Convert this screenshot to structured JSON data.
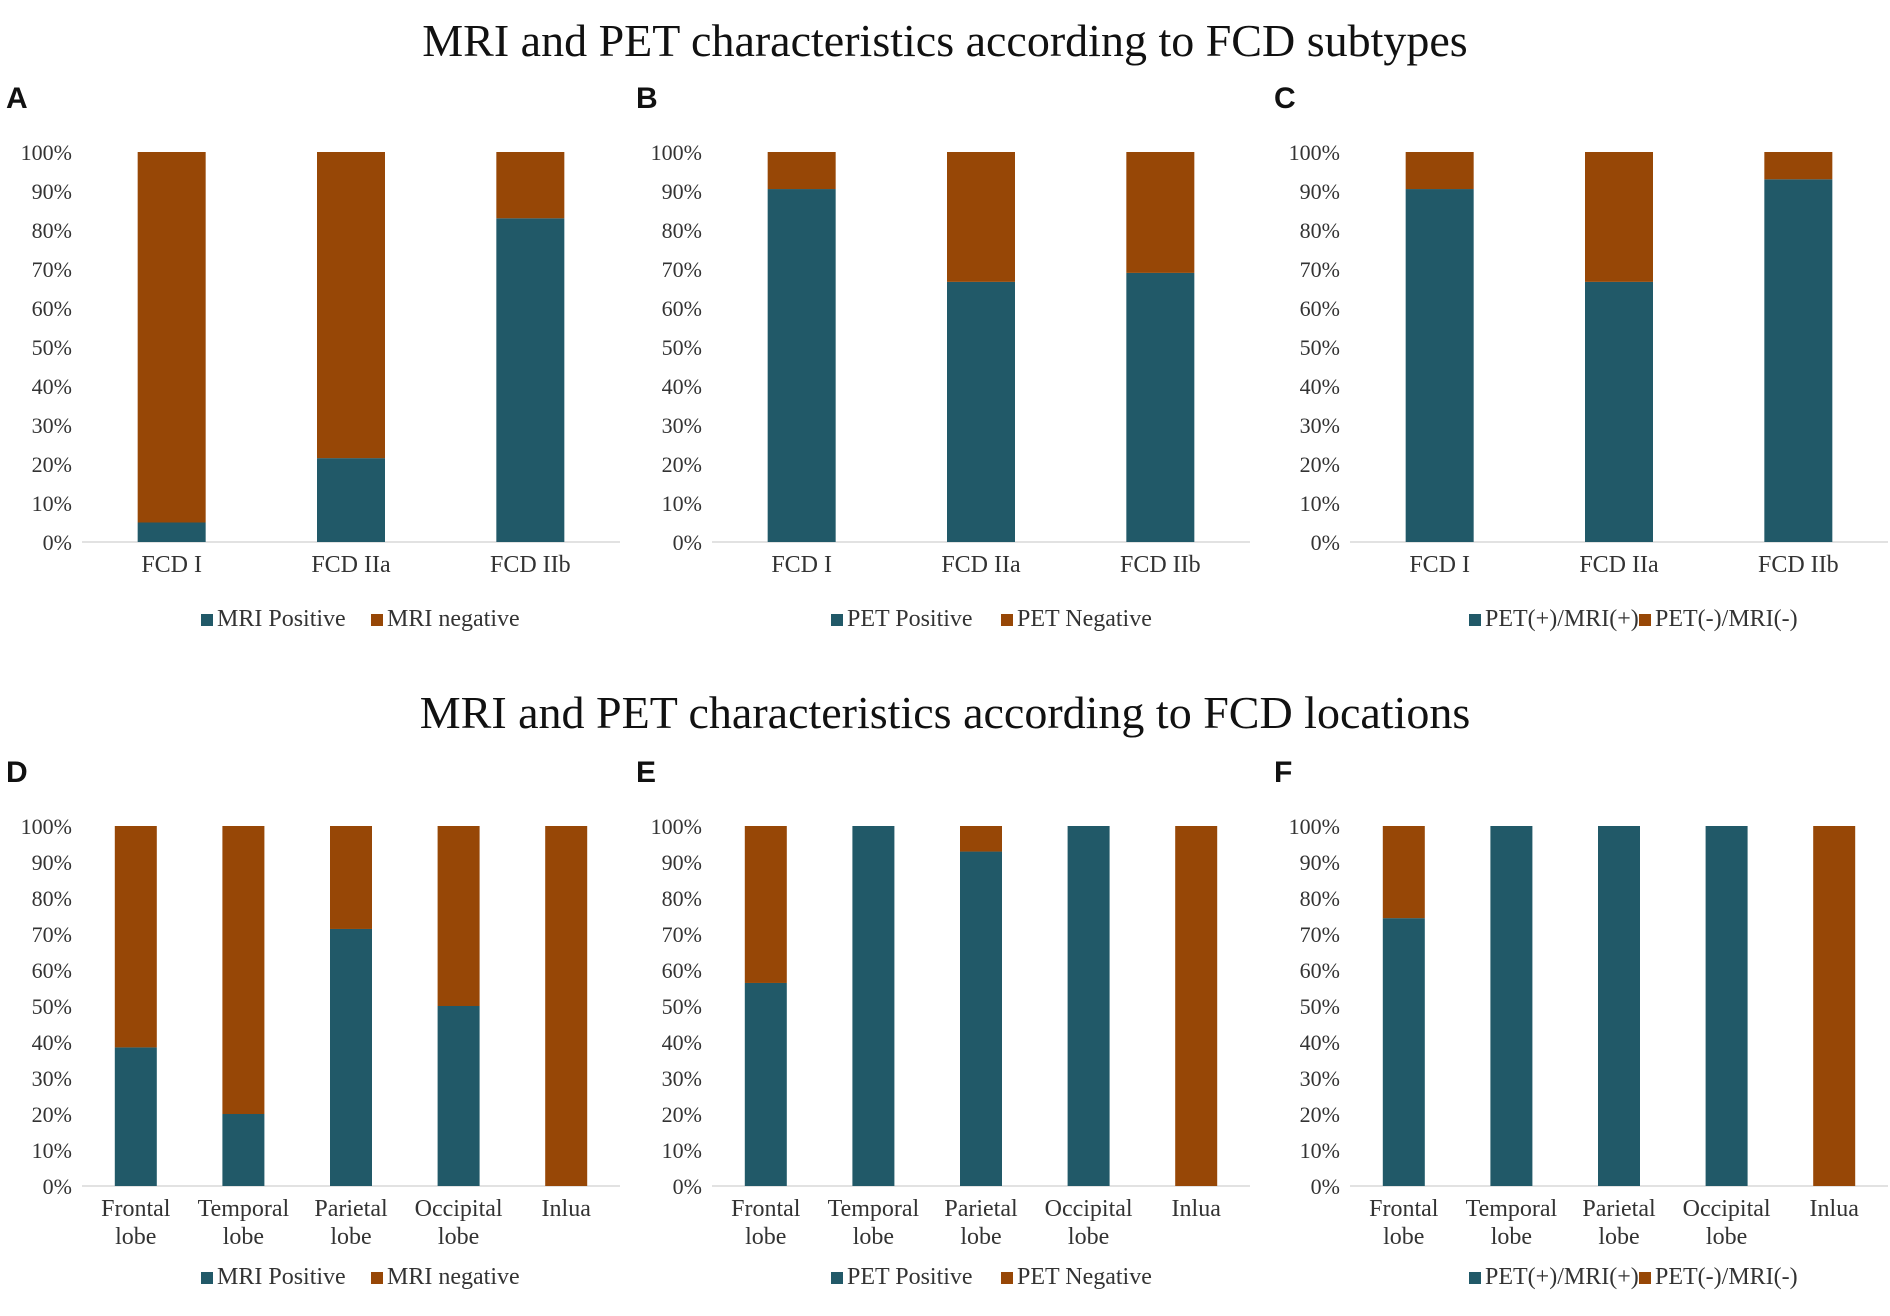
{
  "titles": {
    "top": "MRI and PET characteristics according to FCD subtypes",
    "bottom": "MRI and PET characteristics according to FCD locations"
  },
  "colors": {
    "positive": "#215968",
    "negative": "#974706"
  },
  "chart_data": [
    {
      "panel": "A",
      "type": "bar",
      "stacked": true,
      "categories": [
        [
          "FCD I"
        ],
        [
          "FCD IIa"
        ],
        [
          "FCD IIb"
        ]
      ],
      "series": [
        {
          "name": "MRI Positive",
          "values": [
            5,
            21.5,
            83
          ]
        },
        {
          "name": "MRI negative",
          "values": [
            95,
            78.5,
            17
          ]
        }
      ],
      "ylim": [
        0,
        100
      ],
      "yticks": [
        "0%",
        "10%",
        "20%",
        "30%",
        "40%",
        "50%",
        "60%",
        "70%",
        "80%",
        "90%",
        "100%"
      ]
    },
    {
      "panel": "B",
      "type": "bar",
      "stacked": true,
      "categories": [
        [
          "FCD I"
        ],
        [
          "FCD IIa"
        ],
        [
          "FCD IIb"
        ]
      ],
      "series": [
        {
          "name": "PET Positive",
          "values": [
            90.5,
            66.7,
            69
          ]
        },
        {
          "name": "PET Negative",
          "values": [
            9.5,
            33.3,
            31
          ]
        }
      ],
      "ylim": [
        0,
        100
      ],
      "yticks": [
        "0%",
        "10%",
        "20%",
        "30%",
        "40%",
        "50%",
        "60%",
        "70%",
        "80%",
        "90%",
        "100%"
      ]
    },
    {
      "panel": "C",
      "type": "bar",
      "stacked": true,
      "categories": [
        [
          "FCD I"
        ],
        [
          "FCD IIa"
        ],
        [
          "FCD IIb"
        ]
      ],
      "series": [
        {
          "name": "PET(+)/MRI(+)",
          "values": [
            90.5,
            66.7,
            93
          ]
        },
        {
          "name": "PET(-)/MRI(-)",
          "values": [
            9.5,
            33.3,
            7
          ]
        }
      ],
      "ylim": [
        0,
        100
      ],
      "yticks": [
        "0%",
        "10%",
        "20%",
        "30%",
        "40%",
        "50%",
        "60%",
        "70%",
        "80%",
        "90%",
        "100%"
      ]
    },
    {
      "panel": "D",
      "type": "bar",
      "stacked": true,
      "categories": [
        [
          "Frontal",
          "lobe"
        ],
        [
          "Temporal",
          "lobe"
        ],
        [
          "Parietal",
          "lobe"
        ],
        [
          "Occipital",
          "lobe"
        ],
        [
          "Inlua"
        ]
      ],
      "series": [
        {
          "name": "MRI Positive",
          "values": [
            38.5,
            20,
            71.4,
            50,
            0
          ]
        },
        {
          "name": "MRI negative",
          "values": [
            61.5,
            80,
            28.6,
            50,
            100
          ]
        }
      ],
      "ylim": [
        0,
        100
      ],
      "yticks": [
        "0%",
        "10%",
        "20%",
        "30%",
        "40%",
        "50%",
        "60%",
        "70%",
        "80%",
        "90%",
        "100%"
      ]
    },
    {
      "panel": "E",
      "type": "bar",
      "stacked": true,
      "categories": [
        [
          "Frontal",
          "lobe"
        ],
        [
          "Temporal",
          "lobe"
        ],
        [
          "Parietal",
          "lobe"
        ],
        [
          "Occipital",
          "lobe"
        ],
        [
          "Inlua"
        ]
      ],
      "series": [
        {
          "name": "PET Positive",
          "values": [
            56.4,
            100,
            92.9,
            100,
            0
          ]
        },
        {
          "name": "PET Negative",
          "values": [
            43.6,
            0,
            7.1,
            0,
            100
          ]
        }
      ],
      "ylim": [
        0,
        100
      ],
      "yticks": [
        "0%",
        "10%",
        "20%",
        "30%",
        "40%",
        "50%",
        "60%",
        "70%",
        "80%",
        "90%",
        "100%"
      ]
    },
    {
      "panel": "F",
      "type": "bar",
      "stacked": true,
      "categories": [
        [
          "Frontal",
          "lobe"
        ],
        [
          "Temporal",
          "lobe"
        ],
        [
          "Parietal",
          "lobe"
        ],
        [
          "Occipital",
          "lobe"
        ],
        [
          "Inlua"
        ]
      ],
      "series": [
        {
          "name": "PET(+)/MRI(+)",
          "values": [
            74.4,
            100,
            100,
            100,
            0
          ]
        },
        {
          "name": "PET(-)/MRI(-)",
          "values": [
            25.6,
            0,
            0,
            0,
            100
          ]
        }
      ],
      "ylim": [
        0,
        100
      ],
      "yticks": [
        "0%",
        "10%",
        "20%",
        "30%",
        "40%",
        "50%",
        "60%",
        "70%",
        "80%",
        "90%",
        "100%"
      ]
    }
  ]
}
